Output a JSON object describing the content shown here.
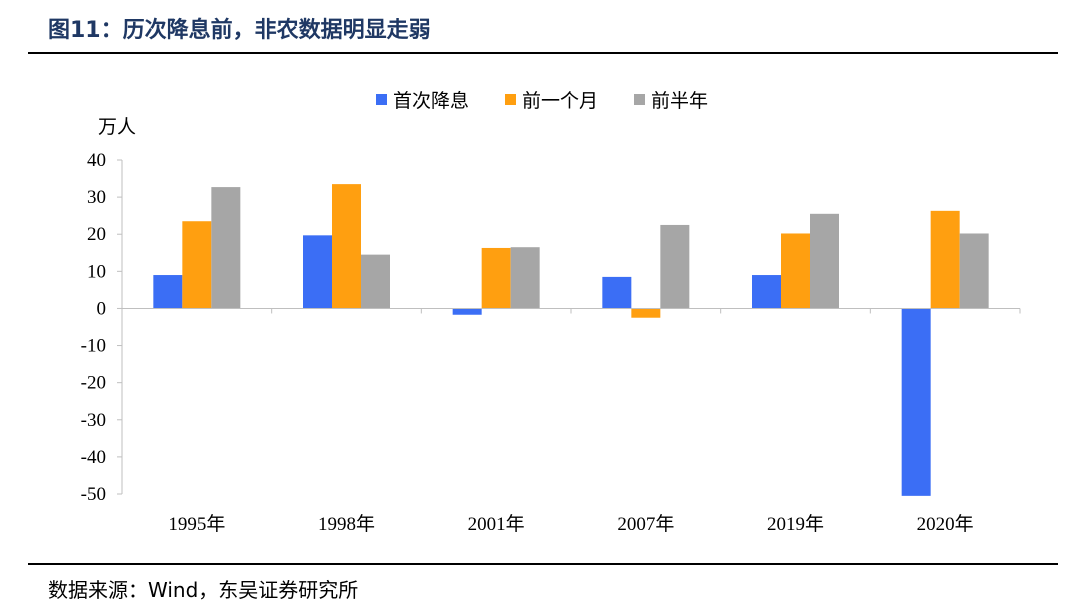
{
  "title": "图11：历次降息前，非农数据明显走弱",
  "source": "数据来源：Wind，东吴证券研究所",
  "colors": {
    "axis": "#bfbfbf"
  },
  "chart_data": {
    "type": "bar",
    "ylabel": "万人",
    "ylim": [
      -50,
      40
    ],
    "yticks": [
      40,
      30,
      20,
      10,
      0,
      -10,
      -20,
      -30,
      -40,
      -50
    ],
    "categories": [
      "1995年",
      "1998年",
      "2001年",
      "2007年",
      "2019年",
      "2020年"
    ],
    "series": [
      {
        "name": "首次降息",
        "color": "#3b6ef5",
        "values": [
          9,
          19.7,
          -1.7,
          8.5,
          9,
          -50.5
        ]
      },
      {
        "name": "前一个月",
        "color": "#ff9f10",
        "values": [
          23.5,
          33.5,
          16.3,
          -2.5,
          20.2,
          26.3
        ]
      },
      {
        "name": "前半年",
        "color": "#a6a6a6",
        "values": [
          32.7,
          14.5,
          16.5,
          22.5,
          25.5,
          20.2
        ]
      }
    ],
    "legend": "top"
  }
}
